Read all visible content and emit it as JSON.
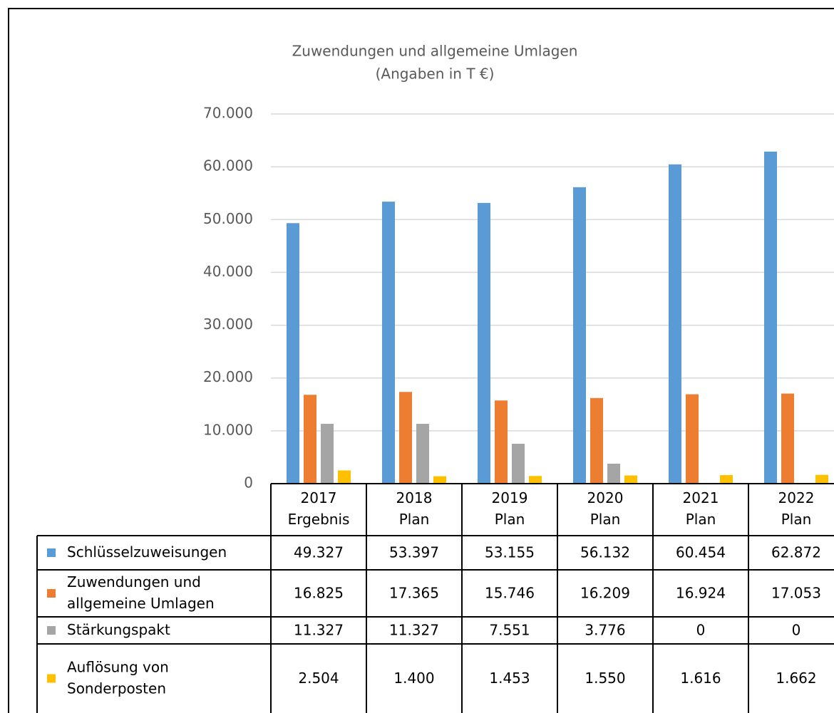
{
  "chart_data": {
    "type": "bar",
    "title": "Zuwendungen und allgemeine Umlagen",
    "subtitle": "(Angaben in T €)",
    "categories": [
      "2017\nErgebnis",
      "2018\nPlan",
      "2019\nPlan",
      "2020\nPlan",
      "2021\nPlan",
      "2022\nPlan"
    ],
    "series": [
      {
        "name": "Schlüsselzuweisungen",
        "color": "#5b9bd5",
        "values": [
          49327,
          53397,
          53155,
          56132,
          60454,
          62872
        ],
        "value_labels": [
          "49.327",
          "53.397",
          "53.155",
          "56.132",
          "60.454",
          "62.872"
        ]
      },
      {
        "name": "Zuwendungen und allgemeine Umlagen",
        "color": "#ed7d31",
        "values": [
          16825,
          17365,
          15746,
          16209,
          16924,
          17053
        ],
        "value_labels": [
          "16.825",
          "17.365",
          "15.746",
          "16.209",
          "16.924",
          "17.053"
        ]
      },
      {
        "name": "Stärkungspakt",
        "color": "#a5a5a5",
        "values": [
          11327,
          11327,
          7551,
          3776,
          0,
          0
        ],
        "value_labels": [
          "11.327",
          "11.327",
          "7.551",
          "3.776",
          "0",
          "0"
        ]
      },
      {
        "name": "Auflösung von Sonderposten",
        "color": "#ffc000",
        "values": [
          2504,
          1400,
          1453,
          1550,
          1616,
          1662
        ],
        "value_labels": [
          "2.504",
          "1.400",
          "1.453",
          "1.550",
          "1.616",
          "1.662"
        ]
      }
    ],
    "ylim": [
      0,
      70000
    ],
    "yticks": [
      0,
      {
        "value": 10000,
        "label": "10.000"
      },
      {
        "value": 20000,
        "label": "20.000"
      },
      {
        "value": 30000,
        "label": "30.000"
      },
      {
        "value": 40000,
        "label": "40.000"
      },
      {
        "value": 50000,
        "label": "50.000"
      },
      {
        "value": 60000,
        "label": "60.000"
      },
      {
        "value": 70000,
        "label": "70.000"
      }
    ],
    "grid": true
  }
}
